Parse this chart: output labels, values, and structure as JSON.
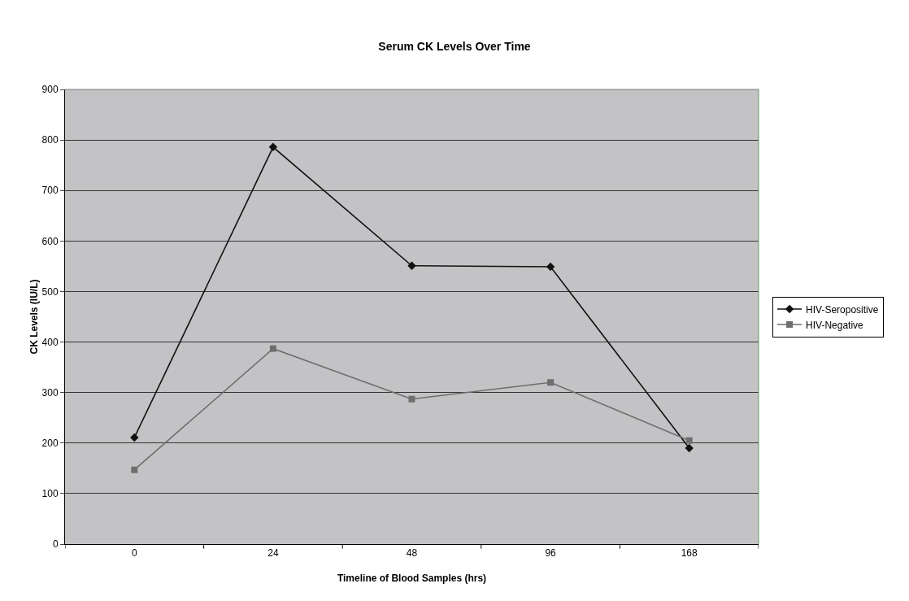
{
  "chart_data": {
    "type": "line",
    "title": "Serum CK Levels Over Time",
    "xlabel": "Timeline of Blood Samples (hrs)",
    "ylabel": "CK Levels (IU/L)",
    "categories": [
      "0",
      "24",
      "48",
      "96",
      "168"
    ],
    "series": [
      {
        "name": "HIV-Seropositive",
        "color": "#111111",
        "marker": "diamond",
        "values": [
          211,
          786,
          551,
          549,
          190
        ]
      },
      {
        "name": "HIV-Negative",
        "color": "#6e6e6e",
        "marker": "square",
        "values": [
          147,
          387,
          287,
          320,
          205
        ]
      }
    ],
    "ylim": [
      0,
      900
    ],
    "yticks": [
      0,
      100,
      200,
      300,
      400,
      500,
      600,
      700,
      800,
      900
    ],
    "grid": "y",
    "legend": "right",
    "line_style": "solid"
  }
}
